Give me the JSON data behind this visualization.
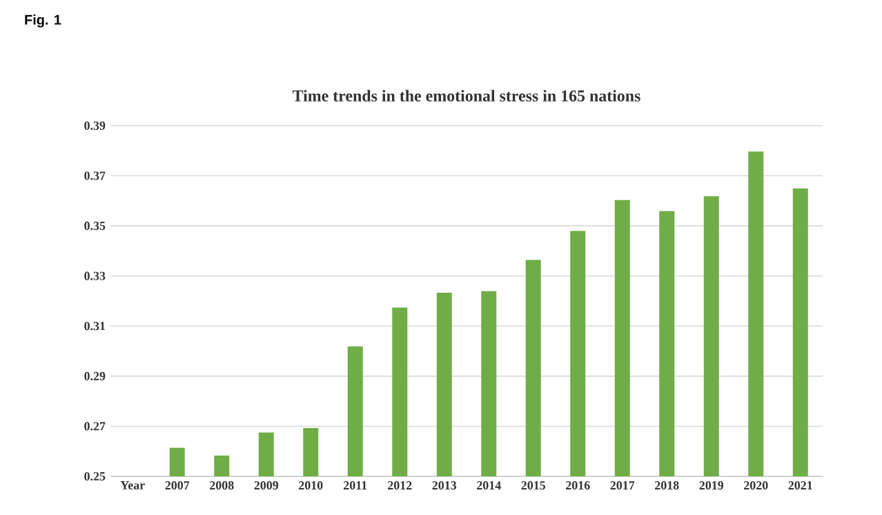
{
  "chart_data": {
    "type": "bar",
    "title": "Time trends in the emotional stress in 165 nations",
    "annotations": [
      "Fig. 1"
    ],
    "categories": [
      "Year",
      "2007",
      "2008",
      "2009",
      "2010",
      "2011",
      "2012",
      "2013",
      "2014",
      "2015",
      "2016",
      "2017",
      "2018",
      "2019",
      "2020",
      "2021"
    ],
    "values": [
      0.25,
      0.2614,
      0.2583,
      0.2675,
      0.2693,
      0.3019,
      0.3174,
      0.3233,
      0.3239,
      0.3364,
      0.348,
      0.3603,
      0.3559,
      0.3618,
      0.3797,
      0.3649
    ],
    "color": "#70ad47",
    "ylim": [
      0.25,
      0.39
    ],
    "yticks": [
      0.25,
      0.27,
      0.29,
      0.31,
      0.33,
      0.35,
      0.37,
      0.39
    ],
    "grid": "y"
  }
}
